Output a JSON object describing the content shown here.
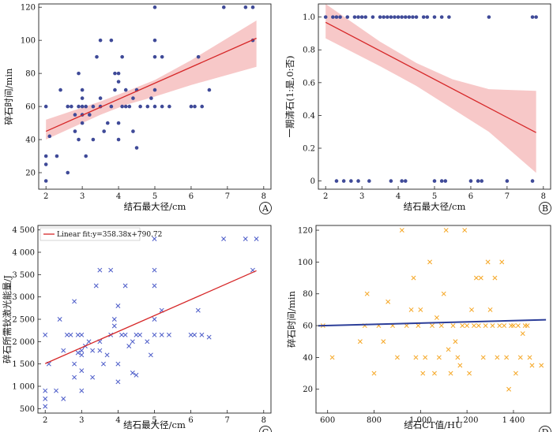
{
  "colors": {
    "dot": "#3f4a98",
    "fit_line": "#d62728",
    "ci_band": "#f4b6b6",
    "cross_blue": "#4a5ac8",
    "cross_orange": "#f5a623",
    "fit_blue": "#2c3e99"
  },
  "chart_data": [
    {
      "id": "A",
      "type": "scatter",
      "panel_label": "A",
      "xlabel": "结石最大径/cm",
      "ylabel": "碎石时间/min",
      "xlim": [
        1.8,
        8.2
      ],
      "ylim": [
        10,
        122
      ],
      "xticks": [
        2,
        3,
        4,
        5,
        6,
        7,
        8
      ],
      "yticks": [
        20,
        40,
        60,
        80,
        100,
        120
      ],
      "grid": false,
      "marker": "dot",
      "points": [
        [
          2.0,
          15
        ],
        [
          2.0,
          25
        ],
        [
          2.0,
          30
        ],
        [
          2.0,
          60
        ],
        [
          2.1,
          42
        ],
        [
          2.3,
          30
        ],
        [
          2.4,
          70
        ],
        [
          2.6,
          20
        ],
        [
          2.6,
          60
        ],
        [
          2.7,
          60
        ],
        [
          2.8,
          45
        ],
        [
          2.8,
          55
        ],
        [
          2.9,
          40
        ],
        [
          2.9,
          80
        ],
        [
          2.9,
          60
        ],
        [
          3.0,
          50
        ],
        [
          3.0,
          55
        ],
        [
          3.0,
          60
        ],
        [
          3.0,
          65
        ],
        [
          3.0,
          70
        ],
        [
          3.1,
          30
        ],
        [
          3.1,
          60
        ],
        [
          3.2,
          55
        ],
        [
          3.3,
          40
        ],
        [
          3.3,
          60
        ],
        [
          3.4,
          90
        ],
        [
          3.5,
          60
        ],
        [
          3.5,
          65
        ],
        [
          3.5,
          100
        ],
        [
          3.6,
          45
        ],
        [
          3.7,
          50
        ],
        [
          3.8,
          60
        ],
        [
          3.8,
          100
        ],
        [
          3.9,
          70
        ],
        [
          3.9,
          80
        ],
        [
          4.0,
          40
        ],
        [
          4.0,
          50
        ],
        [
          4.0,
          75
        ],
        [
          4.0,
          80
        ],
        [
          4.1,
          60
        ],
        [
          4.1,
          90
        ],
        [
          4.2,
          60
        ],
        [
          4.2,
          70
        ],
        [
          4.3,
          60
        ],
        [
          4.4,
          45
        ],
        [
          4.4,
          65
        ],
        [
          4.5,
          35
        ],
        [
          4.5,
          70
        ],
        [
          4.6,
          60
        ],
        [
          4.8,
          60
        ],
        [
          4.9,
          65
        ],
        [
          5.0,
          60
        ],
        [
          5.0,
          70
        ],
        [
          5.0,
          90
        ],
        [
          5.0,
          100
        ],
        [
          5.0,
          120
        ],
        [
          5.2,
          60
        ],
        [
          5.2,
          90
        ],
        [
          5.4,
          60
        ],
        [
          6.0,
          60
        ],
        [
          6.1,
          60
        ],
        [
          6.2,
          90
        ],
        [
          6.3,
          60
        ],
        [
          6.5,
          70
        ],
        [
          6.9,
          120
        ],
        [
          7.5,
          120
        ],
        [
          7.7,
          100
        ],
        [
          7.7,
          120
        ]
      ],
      "fit": {
        "slope": 9.7,
        "intercept": 25.6,
        "x_range": [
          2.0,
          7.8
        ]
      },
      "ci": {
        "lower": [
          [
            2.0,
            40
          ],
          [
            3.5,
            55
          ],
          [
            4.2,
            61
          ],
          [
            5.0,
            66
          ],
          [
            6.0,
            73
          ],
          [
            7.8,
            84
          ]
        ],
        "upper": [
          [
            2.0,
            52
          ],
          [
            3.5,
            63
          ],
          [
            4.2,
            69
          ],
          [
            5.0,
            76
          ],
          [
            6.0,
            88
          ],
          [
            7.8,
            112
          ]
        ]
      }
    },
    {
      "id": "B",
      "type": "scatter",
      "panel_label": "B",
      "xlabel": "结石最大径/cm",
      "ylabel": "一期清石(1:是,0:否)",
      "xlim": [
        1.8,
        8.2
      ],
      "ylim": [
        -0.05,
        1.08
      ],
      "xticks": [
        2,
        3,
        4,
        5,
        6,
        7,
        8
      ],
      "yticks": [
        "0",
        "0.2",
        "0.4",
        "0.6",
        "0.8",
        "1.0"
      ],
      "yticks_values": [
        0,
        0.2,
        0.4,
        0.6,
        0.8,
        1.0
      ],
      "grid": false,
      "marker": "dot",
      "points": [
        [
          2.0,
          1
        ],
        [
          2.2,
          1
        ],
        [
          2.3,
          1
        ],
        [
          2.4,
          1
        ],
        [
          2.6,
          1
        ],
        [
          2.8,
          1
        ],
        [
          2.9,
          1
        ],
        [
          3.0,
          1
        ],
        [
          3.1,
          1
        ],
        [
          3.3,
          1
        ],
        [
          3.5,
          1
        ],
        [
          3.6,
          1
        ],
        [
          3.7,
          1
        ],
        [
          3.8,
          1
        ],
        [
          3.9,
          1
        ],
        [
          4.0,
          1
        ],
        [
          4.1,
          1
        ],
        [
          4.2,
          1
        ],
        [
          4.3,
          1
        ],
        [
          4.4,
          1
        ],
        [
          4.5,
          1
        ],
        [
          4.7,
          1
        ],
        [
          4.8,
          1
        ],
        [
          5.0,
          1
        ],
        [
          5.2,
          1
        ],
        [
          5.4,
          1
        ],
        [
          6.5,
          1
        ],
        [
          7.7,
          1
        ],
        [
          7.8,
          1
        ],
        [
          2.3,
          0
        ],
        [
          2.5,
          0
        ],
        [
          2.7,
          0
        ],
        [
          2.9,
          0
        ],
        [
          3.2,
          0
        ],
        [
          3.8,
          0
        ],
        [
          4.1,
          0
        ],
        [
          4.2,
          0
        ],
        [
          5.0,
          0
        ],
        [
          5.2,
          0
        ],
        [
          5.3,
          0
        ],
        [
          6.0,
          0
        ],
        [
          6.2,
          0
        ],
        [
          6.3,
          0
        ],
        [
          7.0,
          0
        ],
        [
          7.7,
          0
        ]
      ],
      "fit": {
        "slope": -0.116,
        "intercept": 1.2,
        "x_range": [
          2.0,
          7.8
        ]
      },
      "ci": {
        "lower": [
          [
            2.0,
            0.87
          ],
          [
            3.5,
            0.7
          ],
          [
            4.5,
            0.58
          ],
          [
            5.5,
            0.44
          ],
          [
            6.5,
            0.3
          ],
          [
            7.8,
            0.05
          ]
        ],
        "upper": [
          [
            2.0,
            1.08
          ],
          [
            3.5,
            0.85
          ],
          [
            4.5,
            0.72
          ],
          [
            5.5,
            0.62
          ],
          [
            6.5,
            0.56
          ],
          [
            7.8,
            0.55
          ]
        ]
      }
    },
    {
      "id": "C",
      "type": "scatter",
      "panel_label": "C",
      "xlabel": "结石最大径/cm",
      "ylabel": "碎石所需钬激光能量/J",
      "xlim": [
        1.8,
        8.2
      ],
      "ylim": [
        400,
        4600
      ],
      "xticks": [
        2,
        3,
        4,
        5,
        6,
        7,
        8
      ],
      "yticks": [
        "500",
        "1 000",
        "1 500",
        "2 000",
        "2 500",
        "3 000",
        "3 500",
        "4 000",
        "4 500"
      ],
      "yticks_values": [
        500,
        1000,
        1500,
        2000,
        2500,
        3000,
        3500,
        4000,
        4500
      ],
      "grid": false,
      "marker": "cross",
      "legend": {
        "label": "Linear fit:y=358.38x+790.72",
        "position": "top-left"
      },
      "points": [
        [
          2.0,
          550
        ],
        [
          2.0,
          720
        ],
        [
          2.0,
          900
        ],
        [
          2.0,
          2150
        ],
        [
          2.1,
          1500
        ],
        [
          2.3,
          900
        ],
        [
          2.4,
          2500
        ],
        [
          2.5,
          720
        ],
        [
          2.5,
          1800
        ],
        [
          2.6,
          2150
        ],
        [
          2.7,
          2150
        ],
        [
          2.8,
          1200
        ],
        [
          2.8,
          1500
        ],
        [
          2.8,
          2900
        ],
        [
          2.9,
          1750
        ],
        [
          2.9,
          2150
        ],
        [
          3.0,
          900
        ],
        [
          3.0,
          1350
        ],
        [
          3.0,
          1700
        ],
        [
          3.0,
          1800
        ],
        [
          3.0,
          2150
        ],
        [
          3.1,
          1900
        ],
        [
          3.2,
          2000
        ],
        [
          3.3,
          1200
        ],
        [
          3.3,
          1800
        ],
        [
          3.4,
          3250
        ],
        [
          3.5,
          1800
        ],
        [
          3.5,
          2000
        ],
        [
          3.5,
          3600
        ],
        [
          3.6,
          1500
        ],
        [
          3.7,
          1700
        ],
        [
          3.8,
          2150
        ],
        [
          3.8,
          3600
        ],
        [
          3.9,
          2350
        ],
        [
          3.9,
          2500
        ],
        [
          4.0,
          1100
        ],
        [
          4.0,
          1500
        ],
        [
          4.0,
          2800
        ],
        [
          4.1,
          2150
        ],
        [
          4.2,
          2150
        ],
        [
          4.2,
          3250
        ],
        [
          4.3,
          1900
        ],
        [
          4.4,
          1300
        ],
        [
          4.4,
          2000
        ],
        [
          4.5,
          1250
        ],
        [
          4.5,
          2150
        ],
        [
          4.6,
          2150
        ],
        [
          4.8,
          2000
        ],
        [
          4.9,
          1700
        ],
        [
          5.0,
          2150
        ],
        [
          5.0,
          2500
        ],
        [
          5.0,
          3250
        ],
        [
          5.0,
          3600
        ],
        [
          5.0,
          4300
        ],
        [
          5.2,
          2150
        ],
        [
          5.2,
          2700
        ],
        [
          5.4,
          2150
        ],
        [
          6.0,
          2150
        ],
        [
          6.1,
          2150
        ],
        [
          6.2,
          2700
        ],
        [
          6.3,
          2150
        ],
        [
          6.5,
          2100
        ],
        [
          6.9,
          4300
        ],
        [
          7.5,
          4300
        ],
        [
          7.7,
          3600
        ],
        [
          7.8,
          4300
        ]
      ],
      "fit": {
        "slope": 358.38,
        "intercept": 790.72,
        "x_range": [
          2.0,
          7.8
        ]
      }
    },
    {
      "id": "D",
      "type": "scatter",
      "panel_label": "D",
      "xlabel": "结石CT值/HU",
      "ylabel": "碎石时间/min",
      "xlim": [
        550,
        1560
      ],
      "ylim": [
        5,
        123
      ],
      "xticks": [
        "600",
        "800",
        "1 000",
        "1 200",
        "1 400"
      ],
      "xticks_values": [
        600,
        800,
        1000,
        1200,
        1400
      ],
      "yticks": [
        20,
        40,
        60,
        80,
        100,
        120
      ],
      "grid": false,
      "marker": "cross",
      "points": [
        [
          580,
          60
        ],
        [
          620,
          40
        ],
        [
          740,
          50
        ],
        [
          760,
          60
        ],
        [
          770,
          80
        ],
        [
          800,
          30
        ],
        [
          820,
          60
        ],
        [
          840,
          50
        ],
        [
          860,
          75
        ],
        [
          880,
          60
        ],
        [
          900,
          40
        ],
        [
          920,
          120
        ],
        [
          940,
          60
        ],
        [
          960,
          70
        ],
        [
          970,
          90
        ],
        [
          980,
          40
        ],
        [
          990,
          60
        ],
        [
          1000,
          70
        ],
        [
          1010,
          30
        ],
        [
          1020,
          40
        ],
        [
          1040,
          100
        ],
        [
          1050,
          60
        ],
        [
          1060,
          30
        ],
        [
          1070,
          65
        ],
        [
          1080,
          40
        ],
        [
          1090,
          60
        ],
        [
          1100,
          80
        ],
        [
          1110,
          120
        ],
        [
          1120,
          45
        ],
        [
          1130,
          30
        ],
        [
          1140,
          60
        ],
        [
          1150,
          50
        ],
        [
          1160,
          40
        ],
        [
          1170,
          35
        ],
        [
          1180,
          60
        ],
        [
          1190,
          120
        ],
        [
          1200,
          60
        ],
        [
          1210,
          30
        ],
        [
          1220,
          70
        ],
        [
          1230,
          60
        ],
        [
          1240,
          90
        ],
        [
          1250,
          60
        ],
        [
          1260,
          90
        ],
        [
          1270,
          40
        ],
        [
          1280,
          60
        ],
        [
          1290,
          100
        ],
        [
          1300,
          70
        ],
        [
          1310,
          60
        ],
        [
          1320,
          90
        ],
        [
          1330,
          40
        ],
        [
          1340,
          60
        ],
        [
          1350,
          100
        ],
        [
          1360,
          60
        ],
        [
          1370,
          40
        ],
        [
          1380,
          20
        ],
        [
          1390,
          60
        ],
        [
          1400,
          60
        ],
        [
          1410,
          30
        ],
        [
          1420,
          60
        ],
        [
          1430,
          40
        ],
        [
          1440,
          55
        ],
        [
          1450,
          60
        ],
        [
          1460,
          60
        ],
        [
          1470,
          40
        ],
        [
          1480,
          35
        ],
        [
          1520,
          35
        ]
      ],
      "fit": {
        "slope": 0.0039,
        "intercept": 57.7,
        "x_range": [
          560,
          1540
        ]
      }
    }
  ]
}
